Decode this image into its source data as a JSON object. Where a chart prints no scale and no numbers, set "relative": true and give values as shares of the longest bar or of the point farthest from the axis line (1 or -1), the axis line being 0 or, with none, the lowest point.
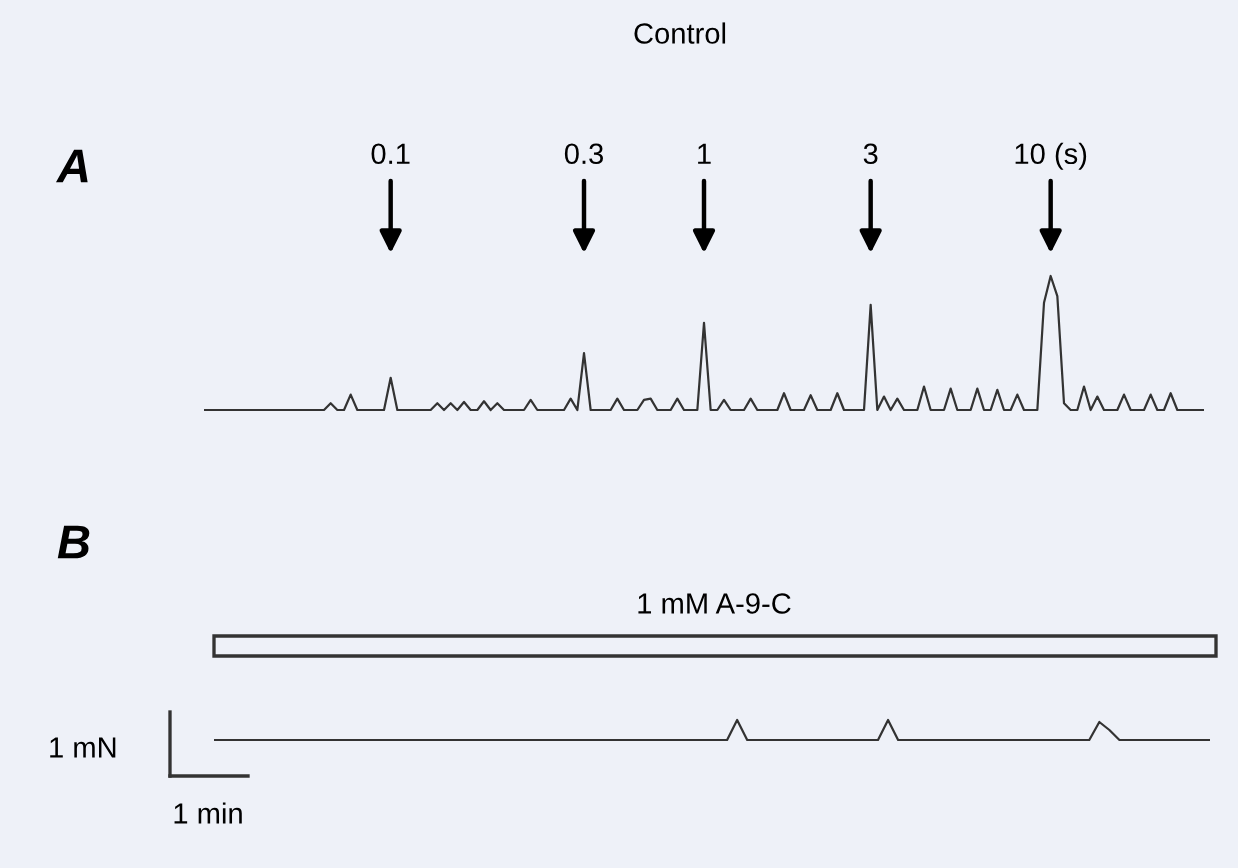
{
  "chart_data": [
    {
      "type": "line",
      "title": "Control",
      "relative": true,
      "grid": false,
      "marker": "none",
      "line_style": "solid",
      "color": "#333333",
      "annotations": [
        "A",
        "0.1",
        "0.3",
        "1",
        "3",
        "10 (s)"
      ],
      "categories": [
        null,
        null,
        null,
        null,
        null,
        null,
        null,
        null,
        null,
        null,
        null,
        null,
        null,
        null,
        null,
        null,
        null,
        null,
        null,
        null,
        null,
        null,
        null,
        null,
        null,
        null,
        null,
        null,
        null,
        null,
        null,
        null,
        null,
        null,
        null,
        null,
        null,
        null,
        null,
        null,
        null,
        null,
        null,
        null,
        null,
        null,
        null,
        null,
        null,
        null,
        null,
        null,
        null,
        null,
        null,
        null,
        null,
        null,
        null,
        null,
        null,
        null,
        null,
        null,
        null,
        null,
        null,
        null,
        null,
        null,
        null,
        null,
        null,
        null,
        null,
        null,
        null,
        null,
        null,
        null,
        null,
        null,
        null,
        null,
        null,
        null,
        null,
        null,
        null,
        null,
        null,
        null,
        null,
        null,
        null,
        null,
        null,
        null,
        null,
        null,
        null,
        null,
        null,
        null,
        null,
        null,
        null,
        null,
        null,
        null,
        null,
        null,
        null,
        null,
        null,
        null,
        null,
        null,
        null,
        null,
        null,
        null,
        null,
        null,
        null,
        null,
        null,
        null,
        null,
        null,
        null,
        null,
        null,
        null,
        null,
        null,
        null,
        null,
        null,
        null,
        null,
        null,
        null,
        null,
        null,
        null,
        null,
        null,
        null,
        null,
        null
      ],
      "values": [
        0,
        0,
        0,
        0,
        0,
        0,
        0,
        0,
        0,
        0,
        0,
        0,
        0,
        0,
        0,
        0,
        0,
        0,
        0,
        0.05,
        0,
        0,
        0.115,
        0,
        0,
        0,
        0,
        0,
        0.24,
        0,
        0,
        0,
        0,
        0,
        0,
        0.05,
        0,
        0.05,
        0,
        0.06,
        0,
        0,
        0.065,
        0,
        0.05,
        0,
        0,
        0,
        0,
        0.075,
        0,
        0,
        0,
        0,
        0,
        0.085,
        0,
        0.425,
        0,
        0,
        0,
        0,
        0.085,
        0,
        0,
        0,
        0.075,
        0.085,
        0,
        0,
        0,
        0.085,
        0,
        0,
        0,
        0.65,
        0,
        0,
        0.075,
        0,
        0,
        0,
        0.085,
        0,
        0,
        0,
        0,
        0.125,
        0,
        0,
        0,
        0.11,
        0,
        0,
        0,
        0.125,
        0,
        0,
        0,
        0,
        0.785,
        0,
        0.1,
        0,
        0.085,
        0,
        0,
        0,
        0.175,
        0,
        0,
        0,
        0.16,
        0,
        0,
        0,
        0.16,
        0,
        0,
        0.15,
        0,
        0,
        0.115,
        0,
        0,
        0,
        0.8,
        1.0,
        0.85,
        0.05,
        0,
        0,
        0.175,
        0,
        0.1,
        0,
        0,
        0,
        0.115,
        0,
        0,
        0,
        0.115,
        0,
        0,
        0.125,
        0,
        0,
        0,
        0,
        0
      ]
    },
    {
      "type": "line",
      "relative": true,
      "grid": false,
      "marker": "none",
      "line_style": "solid",
      "color": "#333333",
      "annotations": [
        "B",
        "1 mM A-9-C",
        "1 mN",
        "1 min"
      ],
      "categories": [
        null,
        null,
        null,
        null,
        null,
        null,
        null,
        null,
        null,
        null,
        null,
        null,
        null,
        null,
        null,
        null,
        null,
        null,
        null,
        null,
        null,
        null,
        null,
        null,
        null,
        null,
        null,
        null,
        null,
        null,
        null,
        null,
        null,
        null,
        null,
        null,
        null,
        null,
        null,
        null,
        null,
        null,
        null,
        null,
        null,
        null,
        null,
        null,
        null,
        null,
        null,
        null,
        null,
        null,
        null,
        null,
        null,
        null,
        null,
        null,
        null,
        null,
        null,
        null,
        null,
        null,
        null,
        null,
        null,
        null,
        null,
        null,
        null,
        null,
        null,
        null,
        null,
        null,
        null,
        null,
        null,
        null,
        null,
        null,
        null,
        null,
        null,
        null,
        null,
        null,
        null,
        null,
        null,
        null,
        null,
        null,
        null,
        null,
        null,
        null
      ],
      "values": [
        0,
        0,
        0,
        0,
        0,
        0,
        0,
        0,
        0,
        0,
        0,
        0,
        0,
        0,
        0,
        0,
        0,
        0,
        0,
        0,
        0,
        0,
        0,
        0,
        0,
        0,
        0,
        0,
        0,
        0,
        0,
        0,
        0,
        0,
        0,
        0,
        0,
        0,
        0,
        0,
        0,
        0,
        0,
        0,
        0,
        0,
        0,
        0,
        0,
        0,
        0,
        0,
        1.0,
        0,
        0,
        0,
        0,
        0,
        0,
        0,
        0,
        0,
        0,
        0,
        0,
        0,
        0,
        1.0,
        0,
        0,
        0,
        0,
        0,
        0,
        0,
        0,
        0,
        0,
        0,
        0,
        0,
        0,
        0,
        0,
        0,
        0,
        0,
        0,
        0.9,
        0.5,
        0,
        0,
        0,
        0,
        0,
        0,
        0,
        0,
        0,
        0
      ]
    }
  ]
}
